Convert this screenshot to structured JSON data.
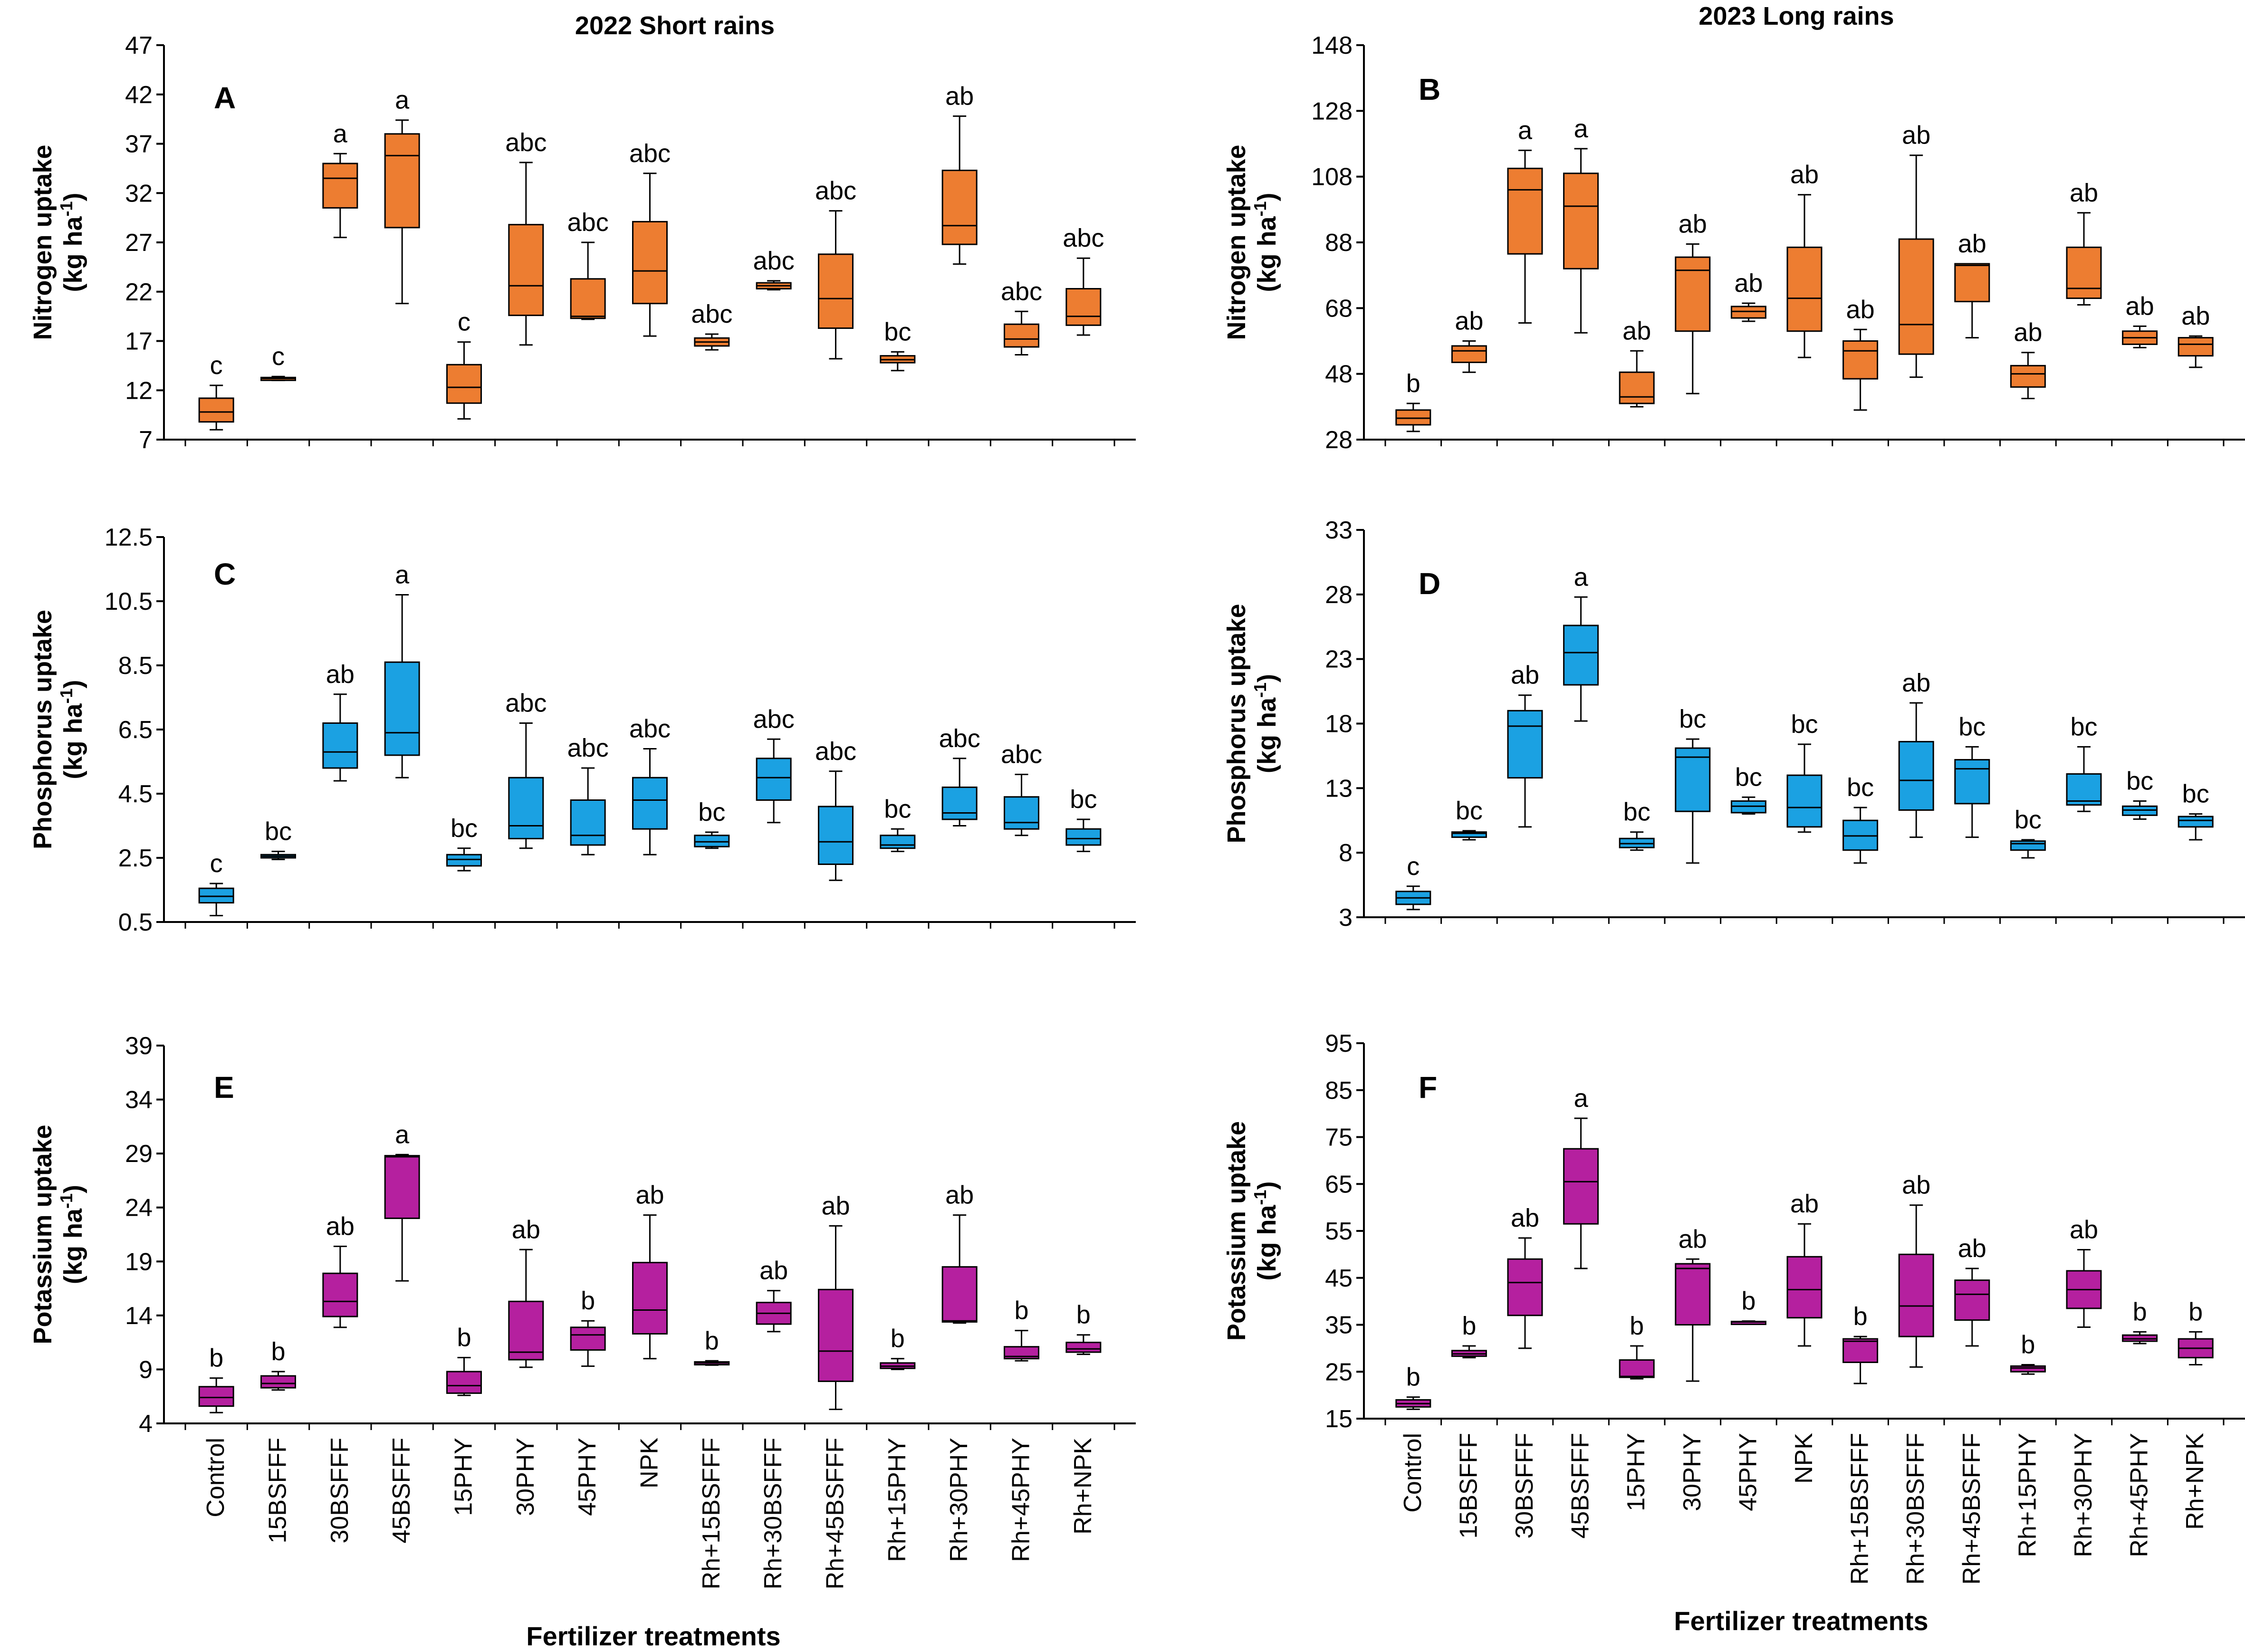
{
  "figure": {
    "column_titles": [
      "2022 Short rains",
      "2023 Long rains"
    ],
    "x_title": "Fertilizer treatments"
  },
  "chart_data": [
    {
      "id": "A",
      "type": "box",
      "letter": "A",
      "season": "2022 Short rains",
      "ylabel": "Nitrogen uptake",
      "yunit": "(kg ha",
      "yunit_sup": "-1",
      "yunit_close": ")",
      "ylim": [
        7,
        47
      ],
      "yticks": [
        "7",
        "12",
        "17",
        "22",
        "27",
        "32",
        "37",
        "42",
        "47"
      ],
      "color": "#ED7D31",
      "categories": [
        "Control",
        "15BSFFF",
        "30BSFFF",
        "45BSFFF",
        "15PHY",
        "30PHY",
        "45PHY",
        "NPK",
        "Rh+15BSFFF",
        "Rh+30BSFFF",
        "Rh+45BSFFF",
        "Rh+15PHY",
        "Rh+30PHY",
        "Rh+45PHY",
        "Rh+NPK"
      ],
      "boxes": [
        {
          "min": 8,
          "q1": 8.8,
          "median": 9.8,
          "q3": 11.2,
          "max": 12.5
        },
        {
          "min": 13,
          "q1": 13.1,
          "median": 13.2,
          "q3": 13.3,
          "max": 13.4
        },
        {
          "min": 27.5,
          "q1": 30.5,
          "median": 33.5,
          "q3": 35,
          "max": 36
        },
        {
          "min": 20.8,
          "q1": 28.5,
          "median": 35.8,
          "q3": 38,
          "max": 39.4
        },
        {
          "min": 9.1,
          "q1": 10.7,
          "median": 12.3,
          "q3": 14.6,
          "max": 16.9
        },
        {
          "min": 16.6,
          "q1": 19.6,
          "median": 22.6,
          "q3": 28.8,
          "max": 35.1
        },
        {
          "min": 19.2,
          "q1": 19.3,
          "median": 19.5,
          "q3": 23.3,
          "max": 27
        },
        {
          "min": 17.5,
          "q1": 20.8,
          "median": 24.1,
          "q3": 29.1,
          "max": 34
        },
        {
          "min": 16.1,
          "q1": 16.5,
          "median": 16.9,
          "q3": 17.3,
          "max": 17.7
        },
        {
          "min": 22.2,
          "q1": 22.3,
          "median": 22.6,
          "q3": 22.9,
          "max": 23.1
        },
        {
          "min": 15.2,
          "q1": 18.3,
          "median": 21.3,
          "q3": 25.8,
          "max": 30.2
        },
        {
          "min": 14,
          "q1": 14.8,
          "median": 15.1,
          "q3": 15.5,
          "max": 15.9
        },
        {
          "min": 24.8,
          "q1": 26.8,
          "median": 28.7,
          "q3": 34.3,
          "max": 39.8
        },
        {
          "min": 15.6,
          "q1": 16.4,
          "median": 17.2,
          "q3": 18.7,
          "max": 20
        },
        {
          "min": 17.6,
          "q1": 18.6,
          "median": 19.5,
          "q3": 22.3,
          "max": 25.4
        }
      ],
      "sig": [
        "c",
        "c",
        "a",
        "a",
        "c",
        "abc",
        "abc",
        "abc",
        "abc",
        "abc",
        "abc",
        "bc",
        "ab",
        "abc",
        "abc"
      ]
    },
    {
      "id": "B",
      "type": "box",
      "letter": "B",
      "season": "2023 Long rains",
      "ylabel": "Nitrogen uptake",
      "yunit": "(kg ha",
      "yunit_sup": "-1",
      "yunit_close": ")",
      "ylim": [
        28,
        148
      ],
      "yticks": [
        "28",
        "48",
        "68",
        "88",
        "108",
        "128",
        "148"
      ],
      "color": "#ED7D31",
      "categories": [
        "Control",
        "15BSFFF",
        "30BSFFF",
        "45BSFFF",
        "15PHY",
        "30PHY",
        "45PHY",
        "NPK",
        "Rh+15BSFFF",
        "Rh+30BSFFF",
        "Rh+45BSFFF",
        "Rh+15PHY",
        "Rh+30PHY",
        "Rh+45PHY",
        "Rh+NPK"
      ],
      "boxes": [
        {
          "min": 30.5,
          "q1": 32.5,
          "median": 34.5,
          "q3": 37,
          "max": 39
        },
        {
          "min": 48.5,
          "q1": 51.5,
          "median": 55,
          "q3": 56.5,
          "max": 58
        },
        {
          "min": 63.5,
          "q1": 84.5,
          "median": 104,
          "q3": 110.5,
          "max": 116
        },
        {
          "min": 60.5,
          "q1": 80,
          "median": 99,
          "q3": 109,
          "max": 116.5
        },
        {
          "min": 38,
          "q1": 39,
          "median": 41,
          "q3": 48.5,
          "max": 55
        },
        {
          "min": 42,
          "q1": 61,
          "median": 79.5,
          "q3": 83.5,
          "max": 87.5
        },
        {
          "min": 64,
          "q1": 65,
          "median": 67,
          "q3": 68.5,
          "max": 69.5
        },
        {
          "min": 53,
          "q1": 61,
          "median": 71,
          "q3": 86.5,
          "max": 102.5
        },
        {
          "min": 37,
          "q1": 46.5,
          "median": 55,
          "q3": 58,
          "max": 61.5
        },
        {
          "min": 47,
          "q1": 54,
          "median": 63,
          "q3": 89,
          "max": 114.5
        },
        {
          "min": 59,
          "q1": 70,
          "median": 81,
          "q3": 81.5,
          "max": 81.5
        },
        {
          "min": 40.5,
          "q1": 44,
          "median": 48,
          "q3": 50.5,
          "max": 54.5
        },
        {
          "min": 69,
          "q1": 71,
          "median": 74,
          "q3": 86.5,
          "max": 97
        },
        {
          "min": 56,
          "q1": 57,
          "median": 59,
          "q3": 61,
          "max": 62.5
        },
        {
          "min": 50,
          "q1": 53.5,
          "median": 57,
          "q3": 59,
          "max": 59.5
        }
      ],
      "sig": [
        "b",
        "ab",
        "a",
        "a",
        "ab",
        "ab",
        "ab",
        "ab",
        "ab",
        "ab",
        "ab",
        "ab",
        "ab",
        "ab",
        "ab"
      ]
    },
    {
      "id": "C",
      "type": "box",
      "letter": "C",
      "season": "2022 Short rains",
      "ylabel": "Phosphorus uptake",
      "yunit": "(kg ha",
      "yunit_sup": "-1",
      "yunit_close": ")",
      "ylim": [
        0.5,
        12.5
      ],
      "yticks": [
        "0.5",
        "2.5",
        "4.5",
        "6.5",
        "8.5",
        "10.5",
        "12.5"
      ],
      "color": "#1BA1E2",
      "categories": [
        "Control",
        "15BSFFF",
        "30BSFFF",
        "45BSFFF",
        "15PHY",
        "30PHY",
        "45PHY",
        "NPK",
        "Rh+15BSFFF",
        "Rh+30BSFFF",
        "Rh+45BSFFF",
        "Rh+15PHY",
        "Rh+30PHY",
        "Rh+45PHY",
        "Rh+NPK"
      ],
      "boxes": [
        {
          "min": 0.7,
          "q1": 1.1,
          "median": 1.3,
          "q3": 1.55,
          "max": 1.7
        },
        {
          "min": 2.45,
          "q1": 2.5,
          "median": 2.55,
          "q3": 2.6,
          "max": 2.7
        },
        {
          "min": 4.9,
          "q1": 5.3,
          "median": 5.8,
          "q3": 6.7,
          "max": 7.6
        },
        {
          "min": 5,
          "q1": 5.7,
          "median": 6.4,
          "q3": 8.6,
          "max": 10.7
        },
        {
          "min": 2.1,
          "q1": 2.25,
          "median": 2.45,
          "q3": 2.6,
          "max": 2.8
        },
        {
          "min": 2.8,
          "q1": 3.1,
          "median": 3.5,
          "q3": 5,
          "max": 6.7
        },
        {
          "min": 2.6,
          "q1": 2.9,
          "median": 3.2,
          "q3": 4.3,
          "max": 5.3
        },
        {
          "min": 2.6,
          "q1": 3.4,
          "median": 4.3,
          "q3": 5,
          "max": 5.9
        },
        {
          "min": 2.8,
          "q1": 2.85,
          "median": 3,
          "q3": 3.2,
          "max": 3.3
        },
        {
          "min": 3.6,
          "q1": 4.3,
          "median": 5,
          "q3": 5.6,
          "max": 6.2
        },
        {
          "min": 1.8,
          "q1": 2.3,
          "median": 3,
          "q3": 4.1,
          "max": 5.2
        },
        {
          "min": 2.7,
          "q1": 2.8,
          "median": 2.9,
          "q3": 3.2,
          "max": 3.4
        },
        {
          "min": 3.5,
          "q1": 3.7,
          "median": 3.9,
          "q3": 4.7,
          "max": 5.6
        },
        {
          "min": 3.2,
          "q1": 3.4,
          "median": 3.6,
          "q3": 4.4,
          "max": 5.1
        },
        {
          "min": 2.7,
          "q1": 2.9,
          "median": 3.1,
          "q3": 3.4,
          "max": 3.7
        }
      ],
      "sig": [
        "c",
        "bc",
        "ab",
        "a",
        "bc",
        "abc",
        "abc",
        "abc",
        "bc",
        "abc",
        "abc",
        "bc",
        "abc",
        "abc",
        "bc"
      ]
    },
    {
      "id": "D",
      "type": "box",
      "letter": "D",
      "season": "2023 Long rains",
      "ylabel": "Phosphorus uptake",
      "yunit": "(kg ha",
      "yunit_sup": "-1",
      "yunit_close": ")",
      "ylim": [
        3,
        33
      ],
      "yticks": [
        "3",
        "8",
        "13",
        "18",
        "23",
        "28",
        "33"
      ],
      "color": "#1BA1E2",
      "categories": [
        "Control",
        "15BSFFF",
        "30BSFFF",
        "45BSFFF",
        "15PHY",
        "30PHY",
        "45PHY",
        "NPK",
        "Rh+15BSFFF",
        "Rh+30BSFFF",
        "Rh+45BSFFF",
        "Rh+15PHY",
        "Rh+30PHY",
        "Rh+45PHY",
        "Rh+NPK"
      ],
      "boxes": [
        {
          "min": 3.6,
          "q1": 4,
          "median": 4.5,
          "q3": 5,
          "max": 5.4
        },
        {
          "min": 9,
          "q1": 9.2,
          "median": 9.5,
          "q3": 9.6,
          "max": 9.7
        },
        {
          "min": 10,
          "q1": 13.8,
          "median": 17.8,
          "q3": 19,
          "max": 20.2
        },
        {
          "min": 18.2,
          "q1": 21,
          "median": 23.5,
          "q3": 25.6,
          "max": 27.8
        },
        {
          "min": 8.2,
          "q1": 8.4,
          "median": 8.7,
          "q3": 9.1,
          "max": 9.6
        },
        {
          "min": 7.2,
          "q1": 11.2,
          "median": 15.4,
          "q3": 16.1,
          "max": 16.8
        },
        {
          "min": 11,
          "q1": 11.1,
          "median": 11.6,
          "q3": 12,
          "max": 12.3
        },
        {
          "min": 9.6,
          "q1": 10,
          "median": 11.5,
          "q3": 14,
          "max": 16.4
        },
        {
          "min": 7.2,
          "q1": 8.2,
          "median": 9.3,
          "q3": 10.5,
          "max": 11.5
        },
        {
          "min": 9.2,
          "q1": 11.3,
          "median": 13.6,
          "q3": 16.6,
          "max": 19.6
        },
        {
          "min": 9.2,
          "q1": 11.8,
          "median": 14.5,
          "q3": 15.2,
          "max": 16.2
        },
        {
          "min": 7.6,
          "q1": 8.2,
          "median": 8.7,
          "q3": 8.9,
          "max": 9
        },
        {
          "min": 11.2,
          "q1": 11.7,
          "median": 12,
          "q3": 14.1,
          "max": 16.2
        },
        {
          "min": 10.6,
          "q1": 10.9,
          "median": 11.3,
          "q3": 11.6,
          "max": 12
        },
        {
          "min": 9,
          "q1": 10,
          "median": 10.5,
          "q3": 10.8,
          "max": 11
        }
      ],
      "sig": [
        "c",
        "bc",
        "ab",
        "a",
        "bc",
        "bc",
        "bc",
        "bc",
        "bc",
        "ab",
        "bc",
        "bc",
        "bc",
        "bc",
        "bc"
      ]
    },
    {
      "id": "E",
      "type": "box",
      "letter": "E",
      "season": "2022 Short rains",
      "ylabel": "Potassium uptake",
      "yunit": "(kg ha",
      "yunit_sup": "-1",
      "yunit_close": ")",
      "ylim": [
        4,
        39
      ],
      "yticks": [
        "4",
        "9",
        "14",
        "19",
        "24",
        "29",
        "34",
        "39"
      ],
      "color": "#B5209F",
      "categories": [
        "Control",
        "15BSFFF",
        "30BSFFF",
        "45BSFFF",
        "15PHY",
        "30PHY",
        "45PHY",
        "NPK",
        "Rh+15BSFFF",
        "Rh+30BSFFF",
        "Rh+45BSFFF",
        "Rh+15PHY",
        "Rh+30PHY",
        "Rh+45PHY",
        "Rh+NPK"
      ],
      "boxes": [
        {
          "min": 5,
          "q1": 5.6,
          "median": 6.4,
          "q3": 7.4,
          "max": 8.2
        },
        {
          "min": 7.1,
          "q1": 7.3,
          "median": 7.7,
          "q3": 8.4,
          "max": 8.8
        },
        {
          "min": 12.9,
          "q1": 13.9,
          "median": 15.3,
          "q3": 17.9,
          "max": 20.4
        },
        {
          "min": 17.2,
          "q1": 23,
          "median": 28.7,
          "q3": 28.8,
          "max": 28.9
        },
        {
          "min": 6.6,
          "q1": 6.8,
          "median": 7.5,
          "q3": 8.8,
          "max": 10.1
        },
        {
          "min": 9.2,
          "q1": 9.9,
          "median": 10.6,
          "q3": 15.3,
          "max": 20.1
        },
        {
          "min": 9.3,
          "q1": 10.8,
          "median": 12.2,
          "q3": 12.9,
          "max": 13.5
        },
        {
          "min": 10,
          "q1": 12.3,
          "median": 14.5,
          "q3": 18.9,
          "max": 23.3
        },
        {
          "min": 9.4,
          "q1": 9.5,
          "median": 9.6,
          "q3": 9.7,
          "max": 9.8
        },
        {
          "min": 12.5,
          "q1": 13.2,
          "median": 14.2,
          "q3": 15.2,
          "max": 16.3
        },
        {
          "min": 5.3,
          "q1": 7.9,
          "median": 10.7,
          "q3": 16.4,
          "max": 22.3
        },
        {
          "min": 9,
          "q1": 9.1,
          "median": 9.3,
          "q3": 9.6,
          "max": 10
        },
        {
          "min": 13.3,
          "q1": 13.4,
          "median": 13.5,
          "q3": 18.5,
          "max": 23.3
        },
        {
          "min": 9.8,
          "q1": 10,
          "median": 10.2,
          "q3": 11.1,
          "max": 12.6
        },
        {
          "min": 10.4,
          "q1": 10.6,
          "median": 10.9,
          "q3": 11.5,
          "max": 12.2
        }
      ],
      "sig": [
        "b",
        "b",
        "ab",
        "a",
        "b",
        "ab",
        "b",
        "ab",
        "b",
        "ab",
        "ab",
        "b",
        "ab",
        "b",
        "b"
      ]
    },
    {
      "id": "F",
      "type": "box",
      "letter": "F",
      "season": "2023 Long rains",
      "ylabel": "Potassium uptake",
      "yunit": "(kg ha",
      "yunit_sup": "-1",
      "yunit_close": ")",
      "ylim": [
        15,
        95
      ],
      "yticks": [
        "15",
        "25",
        "35",
        "45",
        "55",
        "65",
        "75",
        "85",
        "95"
      ],
      "color": "#B5209F",
      "categories": [
        "Control",
        "15BSFFF",
        "30BSFFF",
        "45BSFFF",
        "15PHY",
        "30PHY",
        "45PHY",
        "NPK",
        "Rh+15BSFFF",
        "Rh+30BSFFF",
        "Rh+45BSFFF",
        "Rh+15PHY",
        "Rh+30PHY",
        "Rh+45PHY",
        "Rh+NPK"
      ],
      "boxes": [
        {
          "min": 17,
          "q1": 17.5,
          "median": 18.2,
          "q3": 19,
          "max": 19.6
        },
        {
          "min": 28,
          "q1": 28.3,
          "median": 28.8,
          "q3": 29.5,
          "max": 30.5
        },
        {
          "min": 30,
          "q1": 37,
          "median": 44,
          "q3": 49,
          "max": 53.5
        },
        {
          "min": 47,
          "q1": 56.5,
          "median": 65.5,
          "q3": 72.5,
          "max": 79
        },
        {
          "min": 23.5,
          "q1": 23.8,
          "median": 24,
          "q3": 27.5,
          "max": 30.5
        },
        {
          "min": 23,
          "q1": 35,
          "median": 47,
          "q3": 48,
          "max": 49
        },
        {
          "min": 35.4,
          "q1": 35.5,
          "median": 35.6,
          "q3": 35.7,
          "max": 35.8
        },
        {
          "min": 30.5,
          "q1": 36.5,
          "median": 42.5,
          "q3": 49.5,
          "max": 56.5
        },
        {
          "min": 22.5,
          "q1": 27,
          "median": 31.5,
          "q3": 32,
          "max": 32.5
        },
        {
          "min": 26,
          "q1": 32.5,
          "median": 39,
          "q3": 50,
          "max": 60.5
        },
        {
          "min": 30.5,
          "q1": 36,
          "median": 41.5,
          "q3": 44.5,
          "max": 47
        },
        {
          "min": 24.5,
          "q1": 25,
          "median": 25.8,
          "q3": 26.2,
          "max": 26.5
        },
        {
          "min": 34.5,
          "q1": 38.5,
          "median": 42.5,
          "q3": 46.5,
          "max": 51
        },
        {
          "min": 31,
          "q1": 31.5,
          "median": 32,
          "q3": 32.8,
          "max": 33.5
        },
        {
          "min": 26.5,
          "q1": 28,
          "median": 30,
          "q3": 32,
          "max": 33.5
        }
      ],
      "sig": [
        "b",
        "b",
        "ab",
        "a",
        "b",
        "ab",
        "b",
        "ab",
        "b",
        "ab",
        "ab",
        "b",
        "ab",
        "b",
        "b"
      ]
    }
  ]
}
